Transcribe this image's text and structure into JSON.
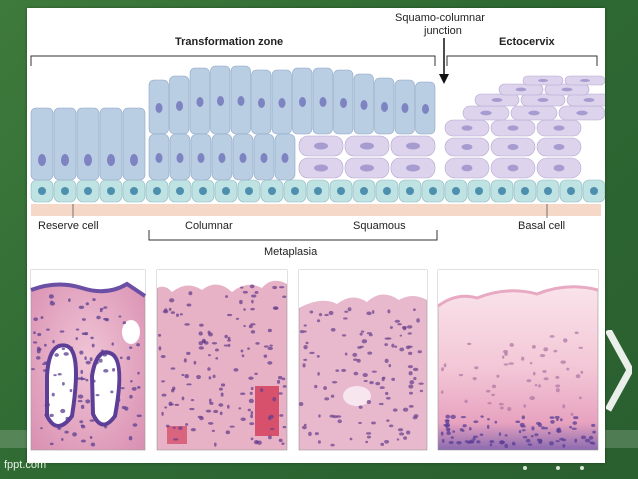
{
  "diagram": {
    "labels": {
      "transformation_zone": "Transformation zone",
      "squamo_columnar_junction_line1": "Squamo-columnar",
      "squamo_columnar_junction_line2": "junction",
      "ectocervix": "Ectocervix",
      "reserve_cell": "Reserve cell",
      "columnar": "Columnar",
      "squamous": "Squamous",
      "basal_cell": "Basal cell",
      "metaplasia": "Metaplasia"
    },
    "colors": {
      "columnar_cell": "#b9cde3",
      "nucleus": "#7e84c2",
      "squamous_cell": "#ddd3ec",
      "basal_cell": "#bfe2e3",
      "basal_nucleus": "#4f8fae",
      "stroma": "#f5d8c8"
    }
  },
  "footer": {
    "watermark": "fppt.com"
  }
}
